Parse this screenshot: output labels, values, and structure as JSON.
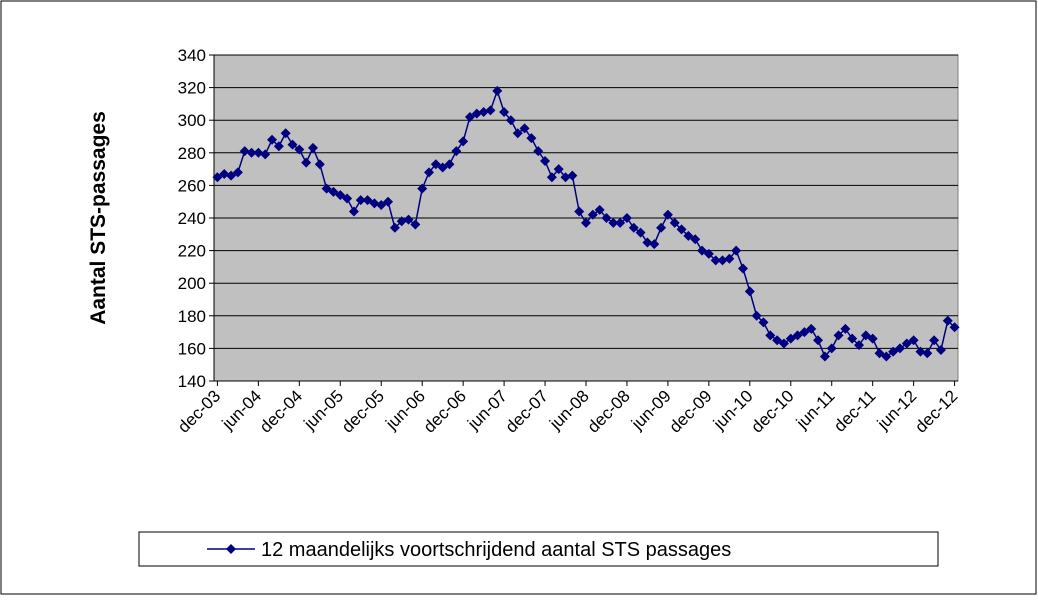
{
  "chart_data": {
    "type": "line",
    "y_axis_label": "Aantal STS-passages",
    "categories": [
      "dec-03",
      null,
      null,
      null,
      null,
      null,
      "jun-04",
      null,
      null,
      null,
      null,
      null,
      "dec-04",
      null,
      null,
      null,
      null,
      null,
      "jun-05",
      null,
      null,
      null,
      null,
      null,
      "dec-05",
      null,
      null,
      null,
      null,
      null,
      "jun-06",
      null,
      null,
      null,
      null,
      null,
      "dec-06",
      null,
      null,
      null,
      null,
      null,
      "jun-07",
      null,
      null,
      null,
      null,
      null,
      "dec-07",
      null,
      null,
      null,
      null,
      null,
      "jun-08",
      null,
      null,
      null,
      null,
      null,
      "dec-08",
      null,
      null,
      null,
      null,
      null,
      "jun-09",
      null,
      null,
      null,
      null,
      null,
      "dec-09",
      null,
      null,
      null,
      null,
      null,
      "jun-10",
      null,
      null,
      null,
      null,
      null,
      "dec-10",
      null,
      null,
      null,
      null,
      null,
      "jun-11",
      null,
      null,
      null,
      null,
      null,
      "dec-11",
      null,
      null,
      null,
      null,
      null,
      "jun-12",
      null,
      null,
      null,
      null,
      null,
      "dec-12"
    ],
    "series": [
      {
        "name": "12 maandelijks voortschrijdend aantal STS passages",
        "color": "#000080",
        "values": [
          265,
          267,
          266,
          268,
          281,
          280,
          280,
          279,
          288,
          284,
          292,
          285,
          282,
          274,
          283,
          273,
          258,
          256,
          254,
          252,
          244,
          251,
          251,
          249,
          248,
          250,
          234,
          238,
          239,
          236,
          258,
          268,
          273,
          271,
          273,
          281,
          287,
          302,
          304,
          305,
          306,
          318,
          305,
          300,
          292,
          295,
          289,
          281,
          275,
          265,
          270,
          265,
          266,
          244,
          237,
          242,
          245,
          240,
          237,
          237,
          240,
          234,
          231,
          225,
          224,
          234,
          242,
          237,
          233,
          229,
          227,
          220,
          218,
          214,
          214,
          215,
          220,
          209,
          195,
          180,
          176,
          168,
          165,
          163,
          166,
          168,
          170,
          172,
          165,
          155,
          160,
          168,
          172,
          166,
          162,
          168,
          166,
          157,
          155,
          158,
          160,
          163,
          165,
          158,
          157,
          165,
          159,
          177,
          173
        ]
      }
    ],
    "ylim": [
      140,
      340
    ],
    "yticks": [
      140,
      160,
      180,
      200,
      220,
      240,
      260,
      280,
      300,
      320,
      340
    ],
    "grid": true,
    "legend": "bottom",
    "plot_background": "#c0c0c0"
  }
}
